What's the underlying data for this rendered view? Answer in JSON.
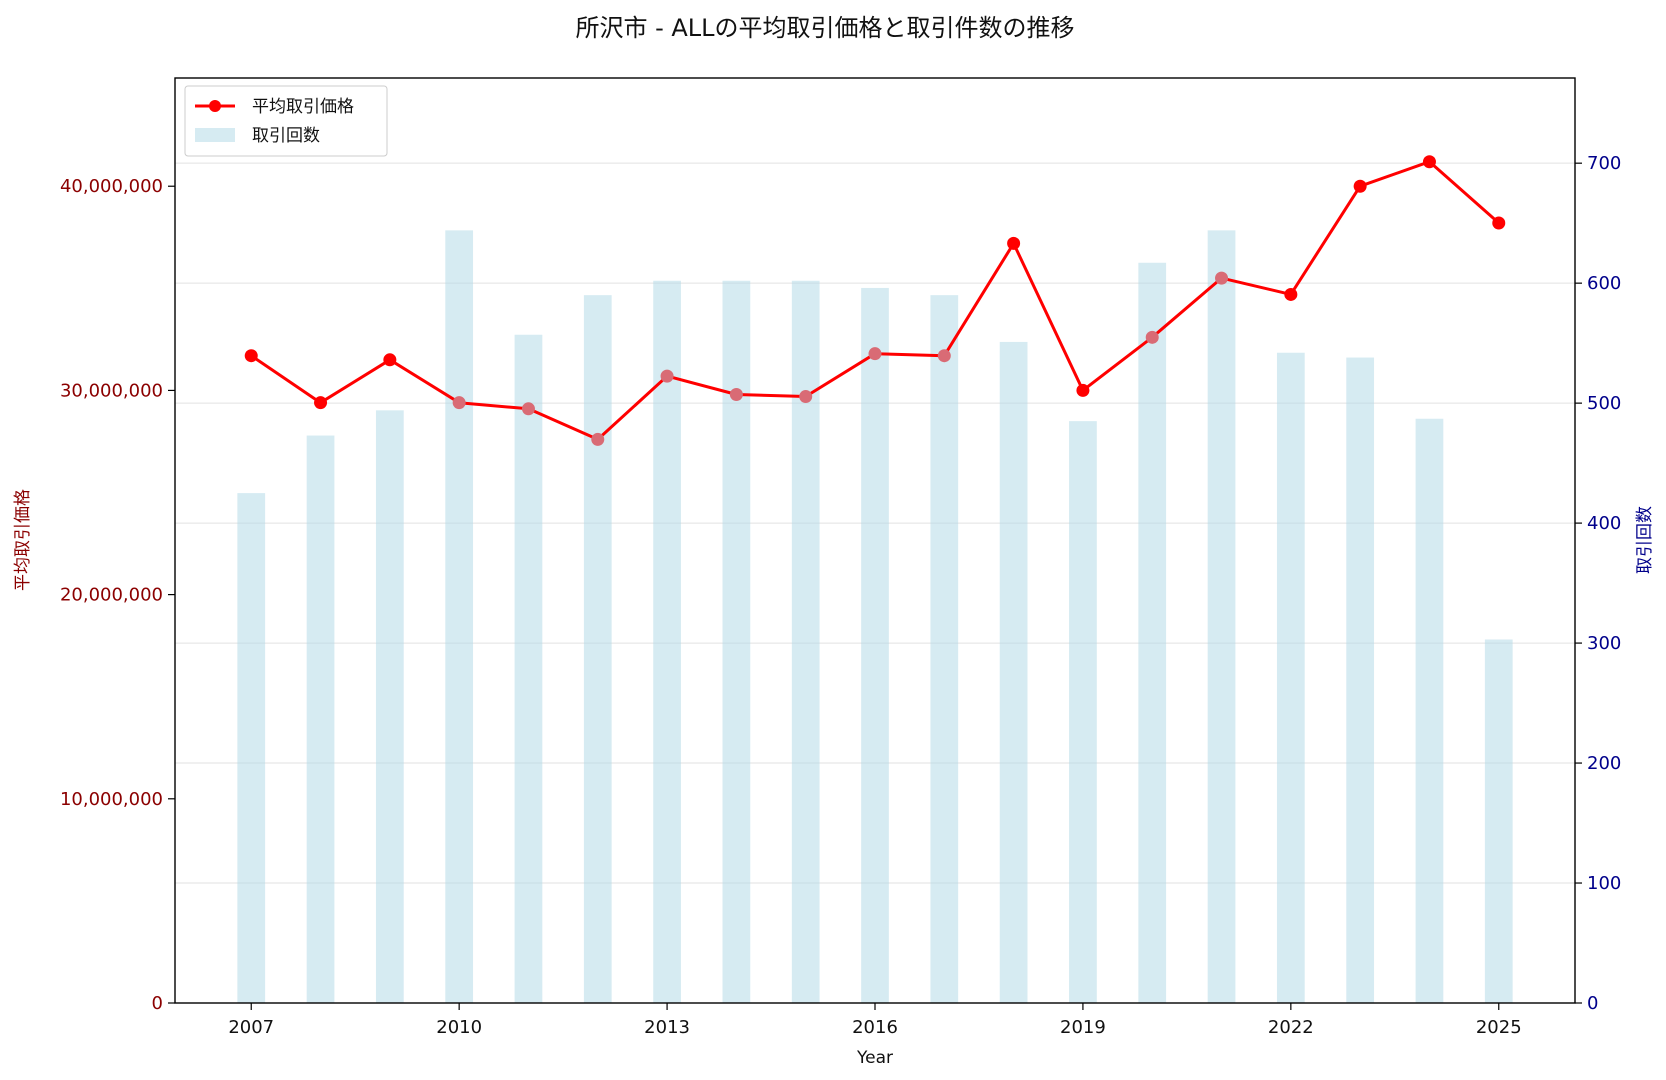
{
  "chart_data": {
    "type": "bar+line",
    "title": "所沢市 - ALLの平均取引価格と取引件数の推移",
    "xlabel": "Year",
    "ylabel_left": "平均取引価格",
    "ylabel_right": "取引回数",
    "x": [
      2007,
      2008,
      2009,
      2010,
      2011,
      2012,
      2013,
      2014,
      2015,
      2016,
      2017,
      2018,
      2019,
      2020,
      2021,
      2022,
      2023,
      2024,
      2025
    ],
    "x_ticks": [
      "2007",
      "2010",
      "2013",
      "2016",
      "2019",
      "2022",
      "2025"
    ],
    "x_tick_values": [
      2007,
      2010,
      2013,
      2016,
      2019,
      2022,
      2025
    ],
    "xlim": [
      2005.9,
      2026.1
    ],
    "y_left_lim": [
      0,
      45300000
    ],
    "y_left_ticks": [
      0,
      10000000,
      20000000,
      30000000,
      40000000
    ],
    "y_left_tick_labels": [
      "0",
      "10,000,000",
      "20,000,000",
      "30,000,000",
      "40,000,000"
    ],
    "y_right_lim": [
      0,
      771
    ],
    "y_right_ticks": [
      0,
      100,
      200,
      300,
      400,
      500,
      600,
      700
    ],
    "y_right_tick_labels": [
      "0",
      "100",
      "200",
      "300",
      "400",
      "500",
      "600",
      "700"
    ],
    "grid": true,
    "legend_placement": "top-left",
    "series": [
      {
        "name": "平均取引価格",
        "type": "line",
        "axis": "left",
        "color": "#ff0000",
        "values": [
          31700000,
          29400000,
          31500000,
          29400000,
          29100000,
          27600000,
          30700000,
          29800000,
          29700000,
          31800000,
          31700000,
          37200000,
          30000000,
          32600000,
          35500000,
          34700000,
          40000000,
          41200000,
          38200000
        ]
      },
      {
        "name": "取引回数",
        "type": "bar",
        "axis": "right",
        "color": "#add8e6",
        "values": [
          425,
          473,
          494,
          644,
          557,
          590,
          602,
          602,
          602,
          596,
          590,
          551,
          485,
          617,
          644,
          542,
          538,
          487,
          303
        ]
      }
    ]
  }
}
